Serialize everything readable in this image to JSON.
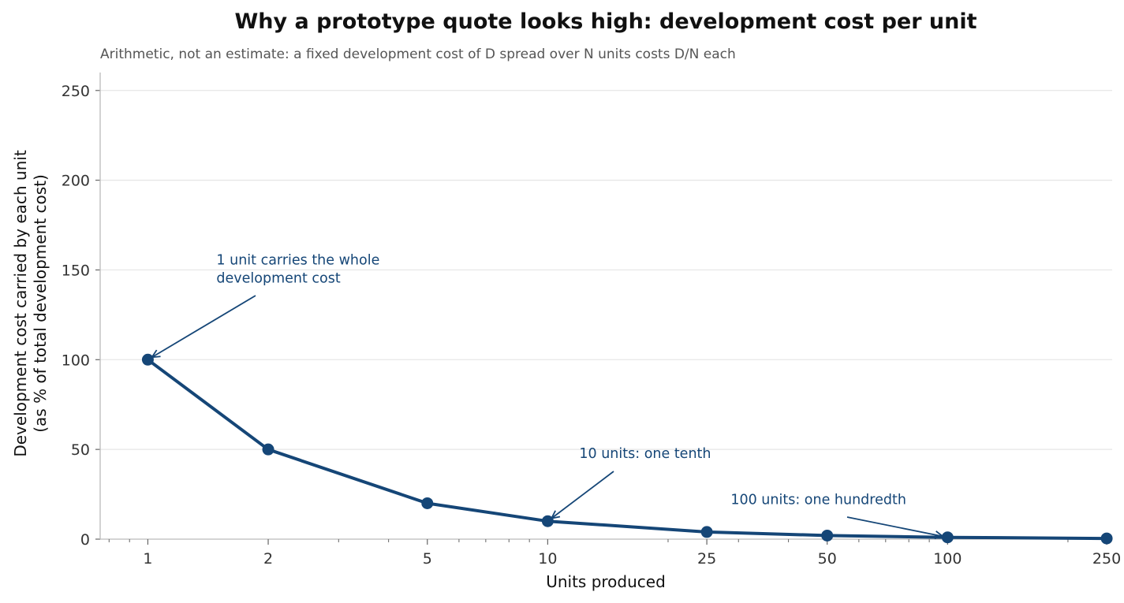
{
  "chart_data": {
    "type": "line",
    "title": "Why a prototype quote looks high: development cost per unit",
    "subtitle": "Arithmetic, not an estimate: a fixed development cost of D spread over N units costs D/N each",
    "xlabel": "Units produced",
    "ylabel": [
      "Development cost carried by each unit",
      "(as % of total development cost)"
    ],
    "x_scale": "log",
    "xlim": [
      0.76,
      258
    ],
    "ylim": [
      0,
      260
    ],
    "x_ticks": [
      1,
      2,
      5,
      10,
      25,
      50,
      100,
      250
    ],
    "y_ticks": [
      0,
      50,
      100,
      150,
      200,
      250
    ],
    "grid": "horizontal",
    "color": "#154677",
    "x": [
      1,
      2,
      5,
      10,
      25,
      50,
      100,
      250
    ],
    "y": [
      100,
      50,
      20,
      10,
      4,
      2,
      1,
      0.4
    ],
    "annotations": [
      {
        "lines": [
          "1 unit carries the whole",
          "development cost"
        ],
        "point": [
          1,
          100
        ]
      },
      {
        "lines": [
          "10 units: one tenth"
        ],
        "point": [
          10,
          10
        ]
      },
      {
        "lines": [
          "100 units: one hundredth"
        ],
        "point": [
          100,
          1
        ]
      }
    ]
  }
}
